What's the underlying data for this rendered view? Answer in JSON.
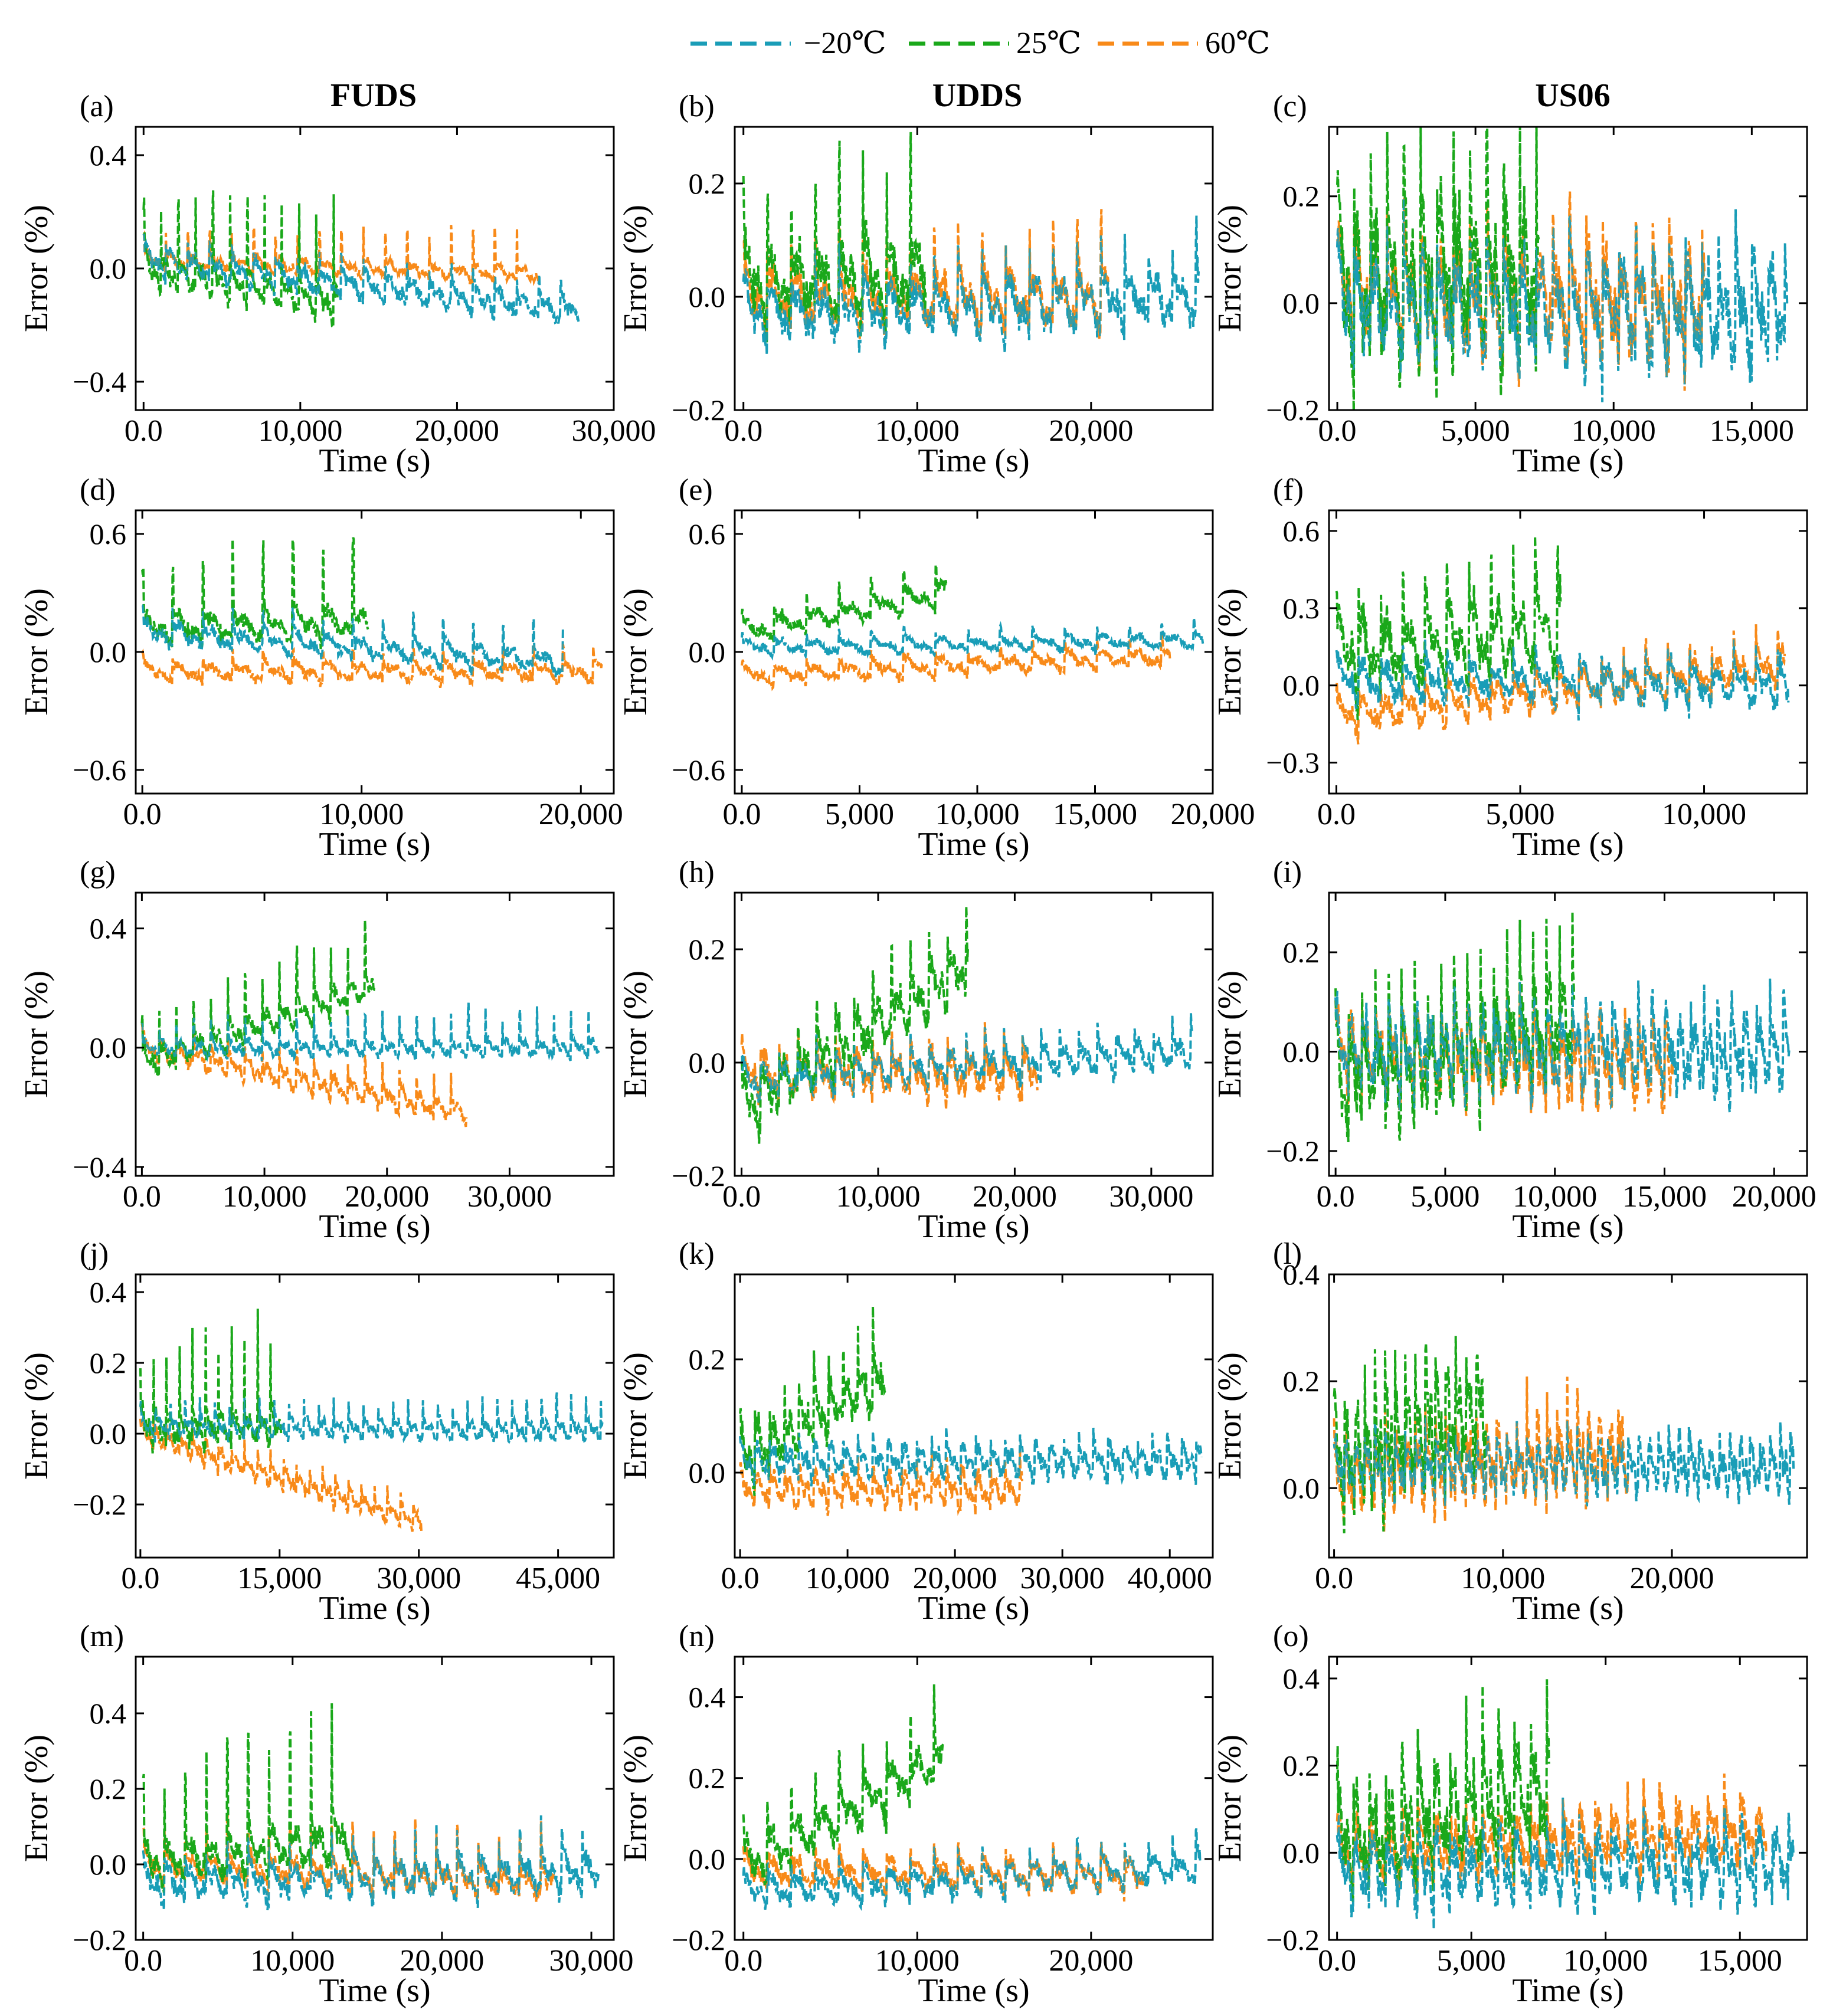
{
  "legend": {
    "entries": [
      {
        "label": "−20℃",
        "color": "#1a9db7"
      },
      {
        "label": "25℃",
        "color": "#1aa81a"
      },
      {
        "label": "60℃",
        "color": "#f88a19"
      }
    ]
  },
  "columns": [
    "FUDS",
    "UDDS",
    "US06"
  ],
  "colors": {
    "t_neg20": "#1a9db7",
    "t_25": "#1aa81a",
    "t_60": "#f88a19"
  },
  "chart_data": [
    {
      "panel": "(a)",
      "type": "line",
      "title": "FUDS",
      "xlabel": "Time (s)",
      "ylabel": "Error (%)",
      "xlim": [
        -500,
        30000
      ],
      "ylim": [
        -0.5,
        0.5
      ],
      "xticks": [
        0,
        10000,
        20000,
        30000
      ],
      "yticks": [
        -0.4,
        0.0,
        0.4
      ],
      "series": [
        {
          "name": "−20℃",
          "x_end": 27800,
          "y_start": 0.03,
          "y_end": -0.15,
          "amp": 0.05,
          "spike": 0.07,
          "period": 1400
        },
        {
          "name": "25℃",
          "x_end": 12400,
          "y_start": 0.0,
          "y_end": -0.12,
          "amp": 0.06,
          "spike": 0.38,
          "period": 1100
        },
        {
          "name": "60℃",
          "x_end": 25200,
          "y_start": 0.03,
          "y_end": -0.02,
          "amp": 0.03,
          "spike": 0.15,
          "period": 1400
        }
      ]
    },
    {
      "panel": "(b)",
      "type": "line",
      "title": "UDDS",
      "xlabel": "Time (s)",
      "ylabel": "Error (%)",
      "xlim": [
        -500,
        27000
      ],
      "ylim": [
        -0.2,
        0.3
      ],
      "xticks": [
        0,
        10000,
        20000
      ],
      "yticks": [
        -0.2,
        0.0,
        0.2
      ],
      "series": [
        {
          "name": "−20℃",
          "x_end": 26200,
          "y_start": -0.03,
          "y_end": 0.0,
          "amp": 0.05,
          "spike": 0.06,
          "period": 1370
        },
        {
          "name": "25℃",
          "x_end": 10500,
          "y_start": 0.02,
          "y_end": 0.04,
          "amp": 0.07,
          "spike": 0.2,
          "period": 1370
        },
        {
          "name": "60℃",
          "x_end": 21000,
          "y_start": 0.0,
          "y_end": 0.0,
          "amp": 0.05,
          "spike": 0.1,
          "period": 1370
        }
      ]
    },
    {
      "panel": "(c)",
      "type": "line",
      "title": "US06",
      "xlabel": "Time (s)",
      "ylabel": "Error (%)",
      "xlim": [
        -300,
        17000
      ],
      "ylim": [
        -0.2,
        0.33
      ],
      "xticks": [
        0,
        5000,
        10000,
        15000
      ],
      "yticks": [
        -0.2,
        0.0,
        0.2
      ],
      "series": [
        {
          "name": "−20℃",
          "x_end": 16300,
          "y_start": 0.0,
          "y_end": -0.02,
          "amp": 0.1,
          "spike": 0.04,
          "period": 600
        },
        {
          "name": "25℃",
          "x_end": 7300,
          "y_start": 0.03,
          "y_end": 0.06,
          "amp": 0.15,
          "spike": 0.15,
          "period": 600
        },
        {
          "name": "60℃",
          "x_end": 13300,
          "y_start": 0.02,
          "y_end": 0.0,
          "amp": 0.1,
          "spike": 0.05,
          "period": 600
        }
      ]
    },
    {
      "panel": "(d)",
      "type": "line",
      "title": "",
      "xlabel": "Time (s)",
      "ylabel": "Error (%)",
      "xlim": [
        -300,
        21500
      ],
      "ylim": [
        -0.72,
        0.72
      ],
      "xticks": [
        0,
        10000,
        20000
      ],
      "yticks": [
        -0.6,
        0.0,
        0.6
      ],
      "series": [
        {
          "name": "−20℃",
          "x_end": 19200,
          "y_start": 0.1,
          "y_end": -0.05,
          "amp": 0.06,
          "spike": 0.15,
          "period": 1370
        },
        {
          "name": "25℃",
          "x_end": 10300,
          "y_start": 0.12,
          "y_end": 0.15,
          "amp": 0.08,
          "spike": 0.45,
          "period": 1370
        },
        {
          "name": "60℃",
          "x_end": 21000,
          "y_start": -0.1,
          "y_end": -0.1,
          "amp": 0.05,
          "spike": 0.08,
          "period": 1370
        }
      ]
    },
    {
      "panel": "(e)",
      "type": "line",
      "title": "",
      "xlabel": "Time (s)",
      "ylabel": "Error (%)",
      "xlim": [
        -300,
        20000
      ],
      "ylim": [
        -0.72,
        0.72
      ],
      "xticks": [
        0,
        5000,
        10000,
        15000,
        20000
      ],
      "yticks": [
        -0.6,
        0.0,
        0.6
      ],
      "series": [
        {
          "name": "−20℃",
          "x_end": 19600,
          "y_start": 0.02,
          "y_end": 0.06,
          "amp": 0.04,
          "spike": 0.06,
          "period": 1370
        },
        {
          "name": "25℃",
          "x_end": 8700,
          "y_start": 0.1,
          "y_end": 0.3,
          "amp": 0.06,
          "spike": 0.12,
          "period": 1370
        },
        {
          "name": "60℃",
          "x_end": 18200,
          "y_start": -0.12,
          "y_end": -0.02,
          "amp": 0.05,
          "spike": 0.05,
          "period": 1370
        }
      ]
    },
    {
      "panel": "(f)",
      "type": "line",
      "title": "",
      "xlabel": "Time (s)",
      "ylabel": "Error (%)",
      "xlim": [
        -200,
        12800
      ],
      "ylim": [
        -0.42,
        0.68
      ],
      "xticks": [
        0,
        5000,
        10000
      ],
      "yticks": [
        -0.3,
        0.0,
        0.3,
        0.6
      ],
      "series": [
        {
          "name": "−20℃",
          "x_end": 12300,
          "y_start": 0.02,
          "y_end": 0.0,
          "amp": 0.08,
          "spike": 0.06,
          "period": 600
        },
        {
          "name": "25℃",
          "x_end": 6100,
          "y_start": 0.12,
          "y_end": 0.22,
          "amp": 0.15,
          "spike": 0.25,
          "period": 600
        },
        {
          "name": "60℃",
          "x_end": 12200,
          "y_start": -0.12,
          "y_end": 0.08,
          "amp": 0.07,
          "spike": 0.08,
          "period": 600
        }
      ]
    },
    {
      "panel": "(g)",
      "type": "line",
      "title": "",
      "xlabel": "Time (s)",
      "ylabel": "Error (%)",
      "xlim": [
        -500,
        38500
      ],
      "ylim": [
        -0.43,
        0.52
      ],
      "xticks": [
        0,
        10000,
        20000,
        30000
      ],
      "yticks": [
        -0.4,
        0.0,
        0.4
      ],
      "series": [
        {
          "name": "−20℃",
          "x_end": 37300,
          "y_start": 0.0,
          "y_end": 0.0,
          "amp": 0.03,
          "spike": 0.12,
          "period": 1400
        },
        {
          "name": "25℃",
          "x_end": 19000,
          "y_start": -0.05,
          "y_end": 0.2,
          "amp": 0.05,
          "spike": 0.2,
          "period": 1400
        },
        {
          "name": "60℃",
          "x_end": 26500,
          "y_start": 0.0,
          "y_end": -0.22,
          "amp": 0.04,
          "spike": 0.08,
          "period": 1400
        }
      ]
    },
    {
      "panel": "(h)",
      "type": "line",
      "title": "",
      "xlabel": "Time (s)",
      "ylabel": "Error (%)",
      "xlim": [
        -500,
        34500
      ],
      "ylim": [
        -0.2,
        0.3
      ],
      "xticks": [
        0,
        10000,
        20000,
        30000
      ],
      "yticks": [
        -0.2,
        0.0,
        0.2
      ],
      "series": [
        {
          "name": "−20℃",
          "x_end": 33000,
          "y_start": -0.03,
          "y_end": 0.02,
          "amp": 0.03,
          "spike": 0.03,
          "period": 1370
        },
        {
          "name": "25℃",
          "x_end": 16600,
          "y_start": -0.08,
          "y_end": 0.17,
          "amp": 0.05,
          "spike": 0.08,
          "period": 1370
        },
        {
          "name": "60℃",
          "x_end": 21700,
          "y_start": -0.02,
          "y_end": -0.02,
          "amp": 0.04,
          "spike": 0.04,
          "period": 1370
        }
      ]
    },
    {
      "panel": "(i)",
      "type": "line",
      "title": "",
      "xlabel": "Time (s)",
      "ylabel": "Error (%)",
      "xlim": [
        -300,
        21500
      ],
      "ylim": [
        -0.25,
        0.32
      ],
      "xticks": [
        0,
        5000,
        10000,
        15000,
        20000
      ],
      "yticks": [
        -0.2,
        0.0,
        0.2
      ],
      "series": [
        {
          "name": "−20℃",
          "x_end": 20700,
          "y_start": 0.0,
          "y_end": 0.0,
          "amp": 0.08,
          "spike": 0.02,
          "period": 600
        },
        {
          "name": "25℃",
          "x_end": 10900,
          "y_start": -0.06,
          "y_end": 0.06,
          "amp": 0.1,
          "spike": 0.15,
          "period": 600
        },
        {
          "name": "60℃",
          "x_end": 15400,
          "y_start": 0.0,
          "y_end": -0.03,
          "amp": 0.08,
          "spike": 0.03,
          "period": 600
        }
      ]
    },
    {
      "panel": "(j)",
      "type": "line",
      "title": "",
      "xlabel": "Time (s)",
      "ylabel": "Error (%)",
      "xlim": [
        -500,
        51000
      ],
      "ylim": [
        -0.35,
        0.45
      ],
      "xticks": [
        0,
        15000,
        30000,
        45000
      ],
      "yticks": [
        -0.2,
        0.0,
        0.2,
        0.4
      ],
      "series": [
        {
          "name": "−20℃",
          "x_end": 49800,
          "y_start": 0.02,
          "y_end": 0.01,
          "amp": 0.03,
          "spike": 0.08,
          "period": 1600
        },
        {
          "name": "25℃",
          "x_end": 15200,
          "y_start": 0.02,
          "y_end": 0.02,
          "amp": 0.05,
          "spike": 0.3,
          "period": 1400
        },
        {
          "name": "60℃",
          "x_end": 30300,
          "y_start": 0.0,
          "y_end": -0.25,
          "amp": 0.03,
          "spike": 0.05,
          "period": 1400
        }
      ]
    },
    {
      "panel": "(k)",
      "type": "line",
      "title": "",
      "xlabel": "Time (s)",
      "ylabel": "Error (%)",
      "xlim": [
        -500,
        44000
      ],
      "ylim": [
        -0.15,
        0.35
      ],
      "xticks": [
        0,
        10000,
        20000,
        30000,
        40000
      ],
      "yticks": [
        0.0,
        0.2
      ],
      "series": [
        {
          "name": "−20℃",
          "x_end": 43000,
          "y_start": 0.02,
          "y_end": 0.02,
          "amp": 0.03,
          "spike": 0.02,
          "period": 1370
        },
        {
          "name": "25℃",
          "x_end": 13500,
          "y_start": 0.02,
          "y_end": 0.17,
          "amp": 0.05,
          "spike": 0.08,
          "period": 1370
        },
        {
          "name": "60℃",
          "x_end": 26300,
          "y_start": -0.03,
          "y_end": -0.03,
          "amp": 0.03,
          "spike": 0.03,
          "period": 1370
        }
      ]
    },
    {
      "panel": "(l)",
      "type": "line",
      "title": "",
      "xlabel": "Time (s)",
      "ylabel": "Error (%)",
      "xlim": [
        -300,
        28000
      ],
      "ylim": [
        -0.13,
        0.4
      ],
      "xticks": [
        0,
        10000,
        20000
      ],
      "yticks": [
        0.0,
        0.2,
        0.4
      ],
      "series": [
        {
          "name": "−20℃",
          "x_end": 27200,
          "y_start": 0.04,
          "y_end": 0.04,
          "amp": 0.05,
          "spike": 0.02,
          "period": 600
        },
        {
          "name": "25℃",
          "x_end": 9000,
          "y_start": 0.05,
          "y_end": 0.15,
          "amp": 0.1,
          "spike": 0.12,
          "period": 600
        },
        {
          "name": "60℃",
          "x_end": 17400,
          "y_start": 0.02,
          "y_end": 0.07,
          "amp": 0.07,
          "spike": 0.05,
          "period": 600
        }
      ]
    },
    {
      "panel": "(m)",
      "type": "line",
      "title": "",
      "xlabel": "Time (s)",
      "ylabel": "Error (%)",
      "xlim": [
        -500,
        31500
      ],
      "ylim": [
        -0.2,
        0.55
      ],
      "xticks": [
        0,
        10000,
        20000,
        30000
      ],
      "yticks": [
        -0.2,
        0.0,
        0.2,
        0.4
      ],
      "series": [
        {
          "name": "−20℃",
          "x_end": 30500,
          "y_start": -0.05,
          "y_end": -0.02,
          "amp": 0.05,
          "spike": 0.08,
          "period": 1400
        },
        {
          "name": "25℃",
          "x_end": 13900,
          "y_start": 0.0,
          "y_end": 0.07,
          "amp": 0.06,
          "spike": 0.35,
          "period": 1400
        },
        {
          "name": "60℃",
          "x_end": 27500,
          "y_start": 0.0,
          "y_end": -0.05,
          "amp": 0.04,
          "spike": 0.12,
          "period": 1400
        }
      ]
    },
    {
      "panel": "(n)",
      "type": "line",
      "title": "",
      "xlabel": "Time (s)",
      "ylabel": "Error (%)",
      "xlim": [
        -500,
        27000
      ],
      "ylim": [
        -0.2,
        0.5
      ],
      "xticks": [
        0,
        10000,
        20000
      ],
      "yticks": [
        -0.2,
        0.0,
        0.2,
        0.4
      ],
      "series": [
        {
          "name": "−20℃",
          "x_end": 26300,
          "y_start": -0.08,
          "y_end": -0.02,
          "amp": 0.04,
          "spike": 0.04,
          "period": 1370
        },
        {
          "name": "25℃",
          "x_end": 11500,
          "y_start": -0.02,
          "y_end": 0.25,
          "amp": 0.06,
          "spike": 0.12,
          "period": 1370
        },
        {
          "name": "60℃",
          "x_end": 23000,
          "y_start": -0.03,
          "y_end": -0.04,
          "amp": 0.04,
          "spike": 0.03,
          "period": 1370
        }
      ]
    },
    {
      "panel": "(o)",
      "type": "line",
      "title": "",
      "xlabel": "Time (s)",
      "ylabel": "Error (%)",
      "xlim": [
        -300,
        17500
      ],
      "ylim": [
        -0.2,
        0.45
      ],
      "xticks": [
        0,
        5000,
        10000,
        15000
      ],
      "yticks": [
        -0.2,
        0.0,
        0.2,
        0.4
      ],
      "series": [
        {
          "name": "−20℃",
          "x_end": 17000,
          "y_start": -0.04,
          "y_end": -0.02,
          "amp": 0.08,
          "spike": 0.03,
          "period": 600
        },
        {
          "name": "25℃",
          "x_end": 7900,
          "y_start": 0.02,
          "y_end": 0.15,
          "amp": 0.12,
          "spike": 0.12,
          "period": 600
        },
        {
          "name": "60℃",
          "x_end": 16000,
          "y_start": 0.0,
          "y_end": 0.05,
          "amp": 0.07,
          "spike": 0.05,
          "period": 600
        }
      ]
    }
  ]
}
